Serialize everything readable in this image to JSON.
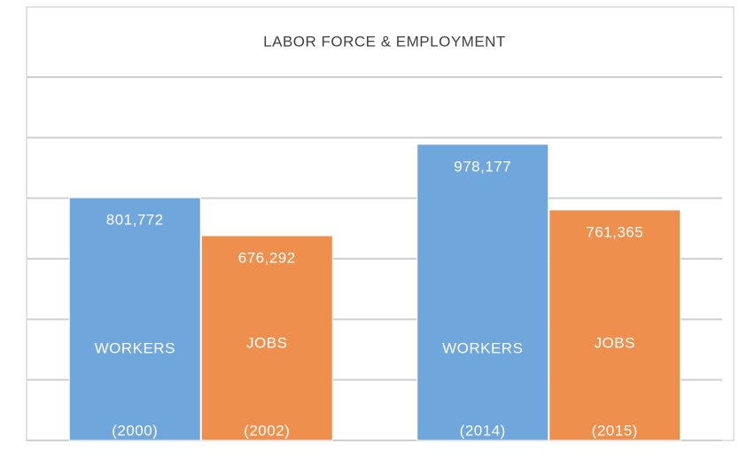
{
  "chart_data": {
    "type": "bar",
    "title": "LABOR FORCE & EMPLOYMENT",
    "series": [
      {
        "name": "WORKERS",
        "color": "#6fa6dc",
        "values": [
          801772,
          978177
        ],
        "value_labels": [
          "801,772",
          "978,177"
        ],
        "years": [
          "(2000)",
          "(2014)"
        ]
      },
      {
        "name": "JOBS",
        "color": "#ef8f4e",
        "values": [
          676292,
          761365
        ],
        "value_labels": [
          "676,292",
          "761,365"
        ],
        "years": [
          "(2002)",
          "(2015)"
        ]
      }
    ],
    "ylim": [
      0,
      1200000
    ],
    "yticks": [
      0,
      200000,
      400000,
      600000,
      800000,
      1000000,
      1200000
    ],
    "grid": true
  }
}
